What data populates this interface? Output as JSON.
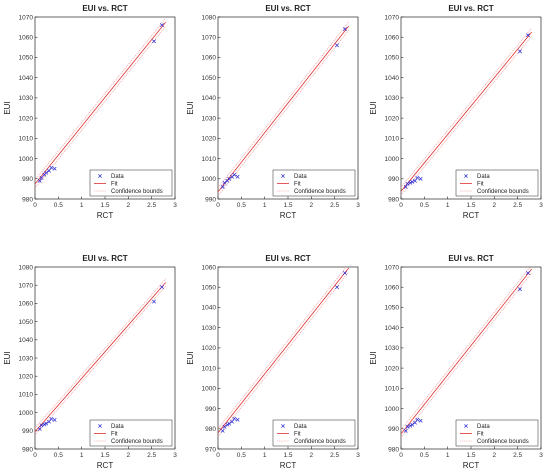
{
  "legend_labels": [
    "Data",
    "Fit",
    "Confidence bounds"
  ],
  "colors": {
    "data": "#2a2ad4",
    "fit": "#e03030",
    "bounds": "#f08a8a",
    "axes": "#262626"
  },
  "chart_data": [
    {
      "type": "scatter",
      "title": "EUI vs. RCT",
      "xlabel": "RCT",
      "ylabel": "EUI",
      "xlim": [
        0,
        3
      ],
      "ylim": [
        980,
        1070
      ],
      "xticks": [
        0,
        0.5,
        1,
        1.5,
        2,
        2.5,
        3
      ],
      "yticks": [
        980,
        990,
        1000,
        1010,
        1020,
        1030,
        1040,
        1050,
        1060,
        1070
      ],
      "x": [
        0.1,
        0.14,
        0.2,
        0.24,
        0.3,
        0.35,
        0.42,
        2.55,
        2.72
      ],
      "y": [
        989,
        990.5,
        992,
        993,
        994,
        995.5,
        995,
        1058,
        1066
      ],
      "fit": {
        "x0": 0,
        "y0": 987.4,
        "x1": 2.8,
        "y1": 1067.4
      },
      "bounds_width": 2.0,
      "legend": "bottom-right",
      "grid": false
    },
    {
      "type": "scatter",
      "title": "EUI vs. RCT",
      "xlabel": "RCT",
      "ylabel": "EUI",
      "xlim": [
        0,
        3
      ],
      "ylim": [
        990,
        1080
      ],
      "xticks": [
        0,
        0.5,
        1,
        1.5,
        2,
        2.5,
        3
      ],
      "yticks": [
        990,
        1000,
        1010,
        1020,
        1030,
        1040,
        1050,
        1060,
        1070,
        1080
      ],
      "x": [
        0.1,
        0.14,
        0.2,
        0.24,
        0.3,
        0.35,
        0.42,
        2.55,
        2.72
      ],
      "y": [
        996,
        998,
        999,
        1000,
        1001,
        1002,
        1001,
        1066,
        1074
      ],
      "fit": {
        "x0": 0,
        "y0": 993.5,
        "x1": 2.8,
        "y1": 1075.5
      },
      "bounds_width": 2.0,
      "legend": "bottom-right",
      "grid": false
    },
    {
      "type": "scatter",
      "title": "EUI vs. RCT",
      "xlabel": "RCT",
      "ylabel": "EUI",
      "xlim": [
        0,
        3
      ],
      "ylim": [
        980,
        1070
      ],
      "xticks": [
        0,
        0.5,
        1,
        1.5,
        2,
        2.5,
        3
      ],
      "yticks": [
        980,
        990,
        1000,
        1010,
        1020,
        1030,
        1040,
        1050,
        1060,
        1070
      ],
      "x": [
        0.1,
        0.14,
        0.2,
        0.24,
        0.3,
        0.35,
        0.42,
        2.55,
        2.72
      ],
      "y": [
        986,
        987.5,
        988,
        988.5,
        989,
        990.5,
        990,
        1053,
        1061
      ],
      "fit": {
        "x0": 0,
        "y0": 983.8,
        "x1": 2.8,
        "y1": 1062.5
      },
      "bounds_width": 2.0,
      "legend": "bottom-right",
      "grid": false
    },
    {
      "type": "scatter",
      "title": "EUI vs. RCT",
      "xlabel": "RCT",
      "ylabel": "EUI",
      "xlim": [
        0,
        3
      ],
      "ylim": [
        980,
        1080
      ],
      "xticks": [
        0,
        0.5,
        1,
        1.5,
        2,
        2.5,
        3
      ],
      "yticks": [
        980,
        990,
        1000,
        1010,
        1020,
        1030,
        1040,
        1050,
        1060,
        1070,
        1080
      ],
      "x": [
        0.1,
        0.14,
        0.2,
        0.24,
        0.3,
        0.35,
        0.42,
        2.55,
        2.72
      ],
      "y": [
        991,
        993,
        993.5,
        994,
        995,
        996.5,
        996,
        1061,
        1069
      ],
      "fit": {
        "x0": 0,
        "y0": 989.5,
        "x1": 2.8,
        "y1": 1071.5
      },
      "bounds_width": 2.0,
      "legend": "bottom-right",
      "grid": false
    },
    {
      "type": "scatter",
      "title": "EUI vs. RCT",
      "xlabel": "RCT",
      "ylabel": "EUI",
      "xlim": [
        0,
        3
      ],
      "ylim": [
        970,
        1060
      ],
      "xticks": [
        0,
        0.5,
        1,
        1.5,
        2,
        2.5,
        3
      ],
      "yticks": [
        970,
        980,
        990,
        1000,
        1010,
        1020,
        1030,
        1040,
        1050,
        1060
      ],
      "x": [
        0.1,
        0.14,
        0.2,
        0.24,
        0.3,
        0.35,
        0.42,
        2.55,
        2.72
      ],
      "y": [
        979,
        981,
        982,
        982.5,
        983.5,
        985,
        984.5,
        1050,
        1057
      ],
      "fit": {
        "x0": 0,
        "y0": 978,
        "x1": 2.8,
        "y1": 1059.5
      },
      "bounds_width": 2.0,
      "legend": "bottom-right",
      "grid": false
    },
    {
      "type": "scatter",
      "title": "EUI vs. RCT",
      "xlabel": "RCT",
      "ylabel": "EUI",
      "xlim": [
        0,
        3
      ],
      "ylim": [
        980,
        1070
      ],
      "xticks": [
        0,
        0.5,
        1,
        1.5,
        2,
        2.5,
        3
      ],
      "yticks": [
        980,
        990,
        1000,
        1010,
        1020,
        1030,
        1040,
        1050,
        1060,
        1070
      ],
      "x": [
        0.1,
        0.14,
        0.2,
        0.24,
        0.3,
        0.35,
        0.42,
        2.55,
        2.72
      ],
      "y": [
        989,
        991,
        991.5,
        992,
        993,
        994.5,
        994,
        1059,
        1067
      ],
      "fit": {
        "x0": 0,
        "y0": 987.5,
        "x1": 2.8,
        "y1": 1069
      },
      "bounds_width": 2.0,
      "legend": "bottom-right",
      "grid": false
    }
  ]
}
